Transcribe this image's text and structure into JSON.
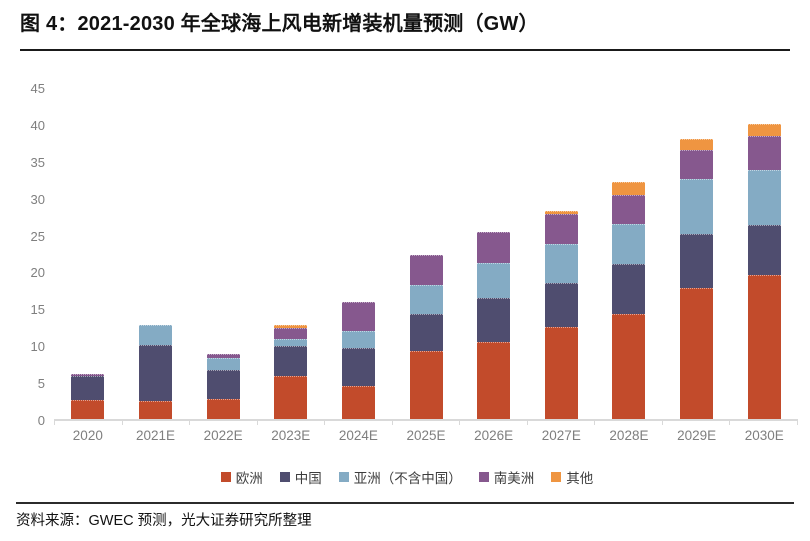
{
  "header": {
    "title": "图 4：2021-2030 年全球海上风电新增装机量预测（GW）"
  },
  "footer": {
    "source": "资料来源：GWEC 预测，光大证券研究所整理"
  },
  "chart_data": {
    "type": "bar",
    "subtype": "stacked",
    "title": "2021-2030 年全球海上风电新增装机量预测（GW）",
    "xlabel": "",
    "ylabel": "",
    "ylim": [
      0,
      45
    ],
    "yticks": [
      0,
      5,
      10,
      15,
      20,
      25,
      30,
      35,
      40,
      45
    ],
    "grid": false,
    "legend_position": "bottom",
    "axis_color": "#d9d9d9",
    "tick_label_color": "#7f7f7f",
    "categories": [
      "2020",
      "2021E",
      "2022E",
      "2023E",
      "2024E",
      "2025E",
      "2026E",
      "2027E",
      "2028E",
      "2029E",
      "2030E"
    ],
    "series": [
      {
        "name": "欧洲",
        "color": "#c24b2b",
        "values": [
          2.6,
          2.5,
          2.7,
          5.8,
          4.5,
          9.2,
          10.5,
          12.5,
          14.3,
          17.8,
          19.5
        ]
      },
      {
        "name": "中国",
        "color": "#4f4d6f",
        "values": [
          3.2,
          7.5,
          3.9,
          4.1,
          5.1,
          5.1,
          5.9,
          6.0,
          6.7,
          7.3,
          6.8
        ]
      },
      {
        "name": "亚洲（不含中国）",
        "color": "#84abc4",
        "values": [
          0,
          2.8,
          1.7,
          1.0,
          2.3,
          3.9,
          4.7,
          5.2,
          5.4,
          7.5,
          7.5
        ]
      },
      {
        "name": "南美洲",
        "color": "#86588e",
        "values": [
          0.3,
          0,
          0.5,
          1.4,
          4.0,
          4.0,
          4.3,
          4.1,
          4.0,
          3.9,
          4.6
        ]
      },
      {
        "name": "其他",
        "color": "#ef9541",
        "values": [
          0,
          0,
          0,
          0.4,
          0,
          0,
          0,
          0.4,
          1.7,
          1.4,
          1.6
        ]
      }
    ],
    "totals": [
      6.1,
      12.8,
      8.8,
      12.7,
      15.9,
      22.2,
      25.4,
      28.2,
      32.1,
      37.9,
      40.0
    ]
  }
}
